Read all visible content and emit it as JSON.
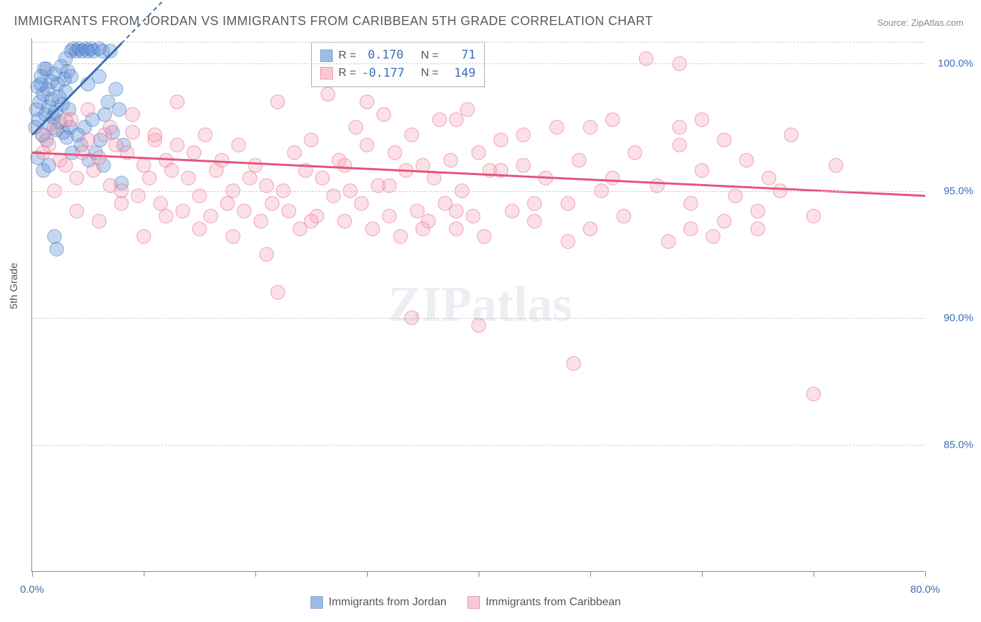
{
  "title": "IMMIGRANTS FROM JORDAN VS IMMIGRANTS FROM CARIBBEAN 5TH GRADE CORRELATION CHART",
  "source_label": "Source: ",
  "source_name": "ZipAtlas.com",
  "y_axis_label": "5th Grade",
  "watermark": "ZIPatlas",
  "chart": {
    "type": "scatter",
    "xlim": [
      0,
      80
    ],
    "ylim": [
      80,
      101
    ],
    "x_ticks": [
      0,
      10,
      20,
      30,
      40,
      50,
      60,
      70,
      80
    ],
    "x_tick_labels": {
      "0": "0.0%",
      "80": "80.0%"
    },
    "y_ticks": [
      85,
      90,
      95,
      100
    ],
    "y_tick_labels": [
      "85.0%",
      "90.0%",
      "95.0%",
      "100.0%"
    ],
    "grid_color": "#cccccc",
    "axis_color": "#888888",
    "background_color": "#ffffff",
    "label_color": "#3b6db5",
    "marker_radius": 10,
    "marker_opacity": 0.35,
    "series": [
      {
        "name": "Immigrants from Jordan",
        "color": "#5b8fd6",
        "stroke": "#3a6fb0",
        "R": "0.170",
        "N": "71",
        "trend": {
          "x1": 0,
          "y1": 97.2,
          "x2": 8,
          "y2": 100.8,
          "dash_after": 8,
          "dash_x2": 17
        },
        "points": [
          [
            0.3,
            97.5
          ],
          [
            0.4,
            98.2
          ],
          [
            0.5,
            99.1
          ],
          [
            0.6,
            97.8
          ],
          [
            0.7,
            98.5
          ],
          [
            0.8,
            99.5
          ],
          [
            0.9,
            97.2
          ],
          [
            1.0,
            98.8
          ],
          [
            1.1,
            99.8
          ],
          [
            1.2,
            98.0
          ],
          [
            1.3,
            97.0
          ],
          [
            1.4,
            99.0
          ],
          [
            1.5,
            98.3
          ],
          [
            1.6,
            97.6
          ],
          [
            1.7,
            99.3
          ],
          [
            1.8,
            98.6
          ],
          [
            1.9,
            97.9
          ],
          [
            2.0,
            99.6
          ],
          [
            2.1,
            98.1
          ],
          [
            2.2,
            97.4
          ],
          [
            2.3,
            99.2
          ],
          [
            2.4,
            98.7
          ],
          [
            2.5,
            97.7
          ],
          [
            2.6,
            99.9
          ],
          [
            2.7,
            98.4
          ],
          [
            2.8,
            97.3
          ],
          [
            2.9,
            99.4
          ],
          [
            3.0,
            98.9
          ],
          [
            3.1,
            97.1
          ],
          [
            3.2,
            99.7
          ],
          [
            3.3,
            98.2
          ],
          [
            3.4,
            97.5
          ],
          [
            3.5,
            100.5
          ],
          [
            3.7,
            100.6
          ],
          [
            4.0,
            100.5
          ],
          [
            4.2,
            100.6
          ],
          [
            4.5,
            100.5
          ],
          [
            4.8,
            100.6
          ],
          [
            5.0,
            100.5
          ],
          [
            5.3,
            100.6
          ],
          [
            5.5,
            100.5
          ],
          [
            6.0,
            100.6
          ],
          [
            6.3,
            100.5
          ],
          [
            6.5,
            98.0
          ],
          [
            7.0,
            100.5
          ],
          [
            3.6,
            96.5
          ],
          [
            4.1,
            97.2
          ],
          [
            4.4,
            96.8
          ],
          [
            4.7,
            97.5
          ],
          [
            5.1,
            96.2
          ],
          [
            5.4,
            97.8
          ],
          [
            5.7,
            96.5
          ],
          [
            6.1,
            97.0
          ],
          [
            6.4,
            96.0
          ],
          [
            6.8,
            98.5
          ],
          [
            7.2,
            97.3
          ],
          [
            7.5,
            99.0
          ],
          [
            7.8,
            98.2
          ],
          [
            8.2,
            96.8
          ],
          [
            0.5,
            96.3
          ],
          [
            1.0,
            95.8
          ],
          [
            1.5,
            96.0
          ],
          [
            0.8,
            99.2
          ],
          [
            1.3,
            99.8
          ],
          [
            2.0,
            93.2
          ],
          [
            2.2,
            92.7
          ],
          [
            8.0,
            95.3
          ],
          [
            3.0,
            100.2
          ],
          [
            3.5,
            99.5
          ],
          [
            5.0,
            99.2
          ],
          [
            6.0,
            99.5
          ]
        ]
      },
      {
        "name": "Immigrants from Caribbean",
        "color": "#f4a6ba",
        "stroke": "#e6537a",
        "R": "-0.177",
        "N": "149",
        "trend": {
          "x1": 0,
          "y1": 96.5,
          "x2": 80,
          "y2": 94.8
        },
        "points": [
          [
            1,
            97.2
          ],
          [
            1.5,
            96.8
          ],
          [
            2,
            97.5
          ],
          [
            2.5,
            96.2
          ],
          [
            3,
            96.0
          ],
          [
            3.5,
            97.8
          ],
          [
            4,
            95.5
          ],
          [
            4.5,
            96.5
          ],
          [
            5,
            97.0
          ],
          [
            5.5,
            95.8
          ],
          [
            6,
            96.3
          ],
          [
            6.5,
            97.2
          ],
          [
            7,
            95.2
          ],
          [
            7.5,
            96.8
          ],
          [
            8,
            95.0
          ],
          [
            8.5,
            96.5
          ],
          [
            9,
            97.3
          ],
          [
            9.5,
            94.8
          ],
          [
            10,
            96.0
          ],
          [
            10.5,
            95.5
          ],
          [
            11,
            97.0
          ],
          [
            11.5,
            94.5
          ],
          [
            12,
            96.2
          ],
          [
            12.5,
            95.8
          ],
          [
            13,
            96.8
          ],
          [
            13.5,
            94.2
          ],
          [
            14,
            95.5
          ],
          [
            14.5,
            96.5
          ],
          [
            15,
            94.8
          ],
          [
            15.5,
            97.2
          ],
          [
            16,
            94.0
          ],
          [
            16.5,
            95.8
          ],
          [
            17,
            96.2
          ],
          [
            17.5,
            94.5
          ],
          [
            18,
            95.0
          ],
          [
            18.5,
            96.8
          ],
          [
            19,
            94.2
          ],
          [
            19.5,
            95.5
          ],
          [
            20,
            96.0
          ],
          [
            20.5,
            93.8
          ],
          [
            21,
            95.2
          ],
          [
            21.5,
            94.5
          ],
          [
            22,
            98.5
          ],
          [
            22.5,
            95.0
          ],
          [
            23,
            94.2
          ],
          [
            23.5,
            96.5
          ],
          [
            24,
            93.5
          ],
          [
            24.5,
            95.8
          ],
          [
            25,
            97.0
          ],
          [
            25.5,
            94.0
          ],
          [
            26,
            95.5
          ],
          [
            26.5,
            98.8
          ],
          [
            27,
            94.8
          ],
          [
            27.5,
            96.2
          ],
          [
            28,
            93.8
          ],
          [
            28.5,
            95.0
          ],
          [
            29,
            97.5
          ],
          [
            29.5,
            94.5
          ],
          [
            30,
            96.8
          ],
          [
            30.5,
            93.5
          ],
          [
            31,
            95.2
          ],
          [
            31.5,
            98.0
          ],
          [
            32,
            94.0
          ],
          [
            32.5,
            96.5
          ],
          [
            33,
            93.2
          ],
          [
            33.5,
            95.8
          ],
          [
            34,
            97.2
          ],
          [
            34.5,
            94.2
          ],
          [
            35,
            96.0
          ],
          [
            35.5,
            93.8
          ],
          [
            36,
            95.5
          ],
          [
            36.5,
            97.8
          ],
          [
            37,
            94.5
          ],
          [
            37.5,
            96.2
          ],
          [
            38,
            93.5
          ],
          [
            38.5,
            95.0
          ],
          [
            39,
            98.2
          ],
          [
            39.5,
            94.0
          ],
          [
            40,
            96.5
          ],
          [
            40.5,
            93.2
          ],
          [
            41,
            95.8
          ],
          [
            42,
            97.0
          ],
          [
            43,
            94.2
          ],
          [
            44,
            96.0
          ],
          [
            45,
            93.8
          ],
          [
            46,
            95.5
          ],
          [
            47,
            97.5
          ],
          [
            48,
            94.5
          ],
          [
            49,
            96.2
          ],
          [
            50,
            93.5
          ],
          [
            51,
            95.0
          ],
          [
            52,
            97.8
          ],
          [
            53,
            94.0
          ],
          [
            54,
            96.5
          ],
          [
            55,
            100.2
          ],
          [
            56,
            95.2
          ],
          [
            57,
            93.0
          ],
          [
            58,
            96.8
          ],
          [
            59,
            94.5
          ],
          [
            60,
            95.8
          ],
          [
            61,
            93.2
          ],
          [
            62,
            97.0
          ],
          [
            63,
            94.8
          ],
          [
            64,
            96.2
          ],
          [
            65,
            93.5
          ],
          [
            66,
            95.5
          ],
          [
            68,
            97.2
          ],
          [
            70,
            94.0
          ],
          [
            72,
            96.0
          ],
          [
            59,
            93.5
          ],
          [
            52,
            95.5
          ],
          [
            48,
            93.0
          ],
          [
            45,
            94.5
          ],
          [
            42,
            95.8
          ],
          [
            38,
            94.2
          ],
          [
            35,
            93.5
          ],
          [
            32,
            95.2
          ],
          [
            28,
            96.0
          ],
          [
            25,
            93.8
          ],
          [
            22,
            91.0
          ],
          [
            21,
            92.5
          ],
          [
            18,
            93.2
          ],
          [
            15,
            93.5
          ],
          [
            12,
            94.0
          ],
          [
            10,
            93.2
          ],
          [
            8,
            94.5
          ],
          [
            6,
            93.8
          ],
          [
            4,
            94.2
          ],
          [
            2,
            95.0
          ],
          [
            1,
            96.5
          ],
          [
            3,
            97.8
          ],
          [
            5,
            98.2
          ],
          [
            7,
            97.5
          ],
          [
            9,
            98.0
          ],
          [
            11,
            97.2
          ],
          [
            13,
            98.5
          ],
          [
            34,
            90.0
          ],
          [
            40,
            89.7
          ],
          [
            48.5,
            88.2
          ],
          [
            58,
            97.5
          ],
          [
            60,
            97.8
          ],
          [
            62,
            93.8
          ],
          [
            65,
            94.2
          ],
          [
            67,
            95.0
          ],
          [
            70,
            87.0
          ],
          [
            58,
            100.0
          ],
          [
            50,
            97.5
          ],
          [
            44,
            97.2
          ],
          [
            38,
            97.8
          ],
          [
            30,
            98.5
          ]
        ]
      }
    ]
  },
  "bottom_legend": [
    {
      "color": "#5b8fd6",
      "stroke": "#3a6fb0",
      "label": "Immigrants from Jordan"
    },
    {
      "color": "#f4a6ba",
      "stroke": "#e6537a",
      "label": "Immigrants from Caribbean"
    }
  ]
}
